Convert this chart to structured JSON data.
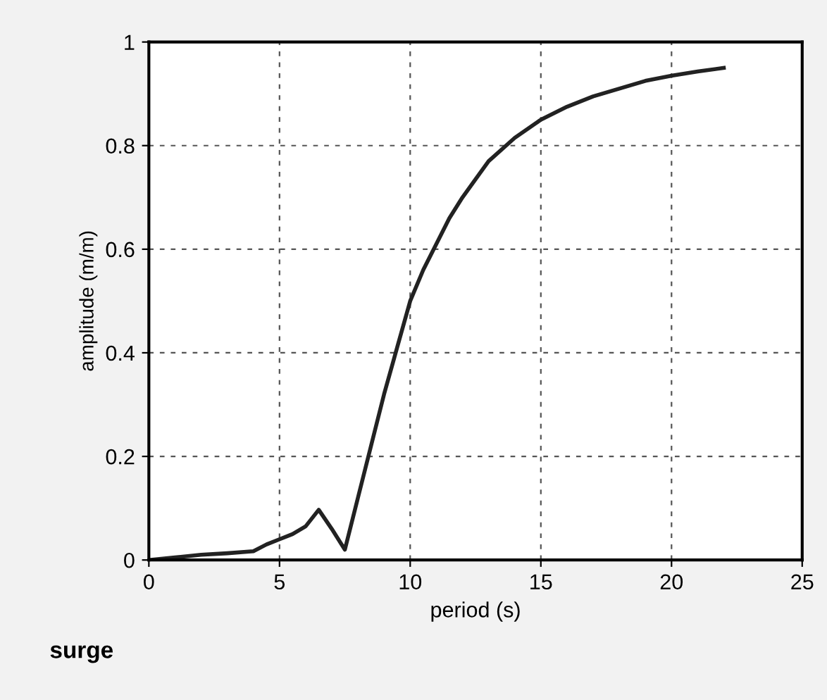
{
  "chart_data": {
    "type": "line",
    "xlabel": "period (s)",
    "ylabel": "amplitude (m/m)",
    "annotations": [
      "surge"
    ],
    "series": [
      {
        "color": "#222222",
        "x": [
          0,
          1,
          2,
          3,
          4,
          4.5,
          5,
          5.5,
          6,
          6.5,
          7,
          7.5,
          8,
          8.5,
          9,
          9.5,
          10,
          10.5,
          11,
          11.5,
          12,
          13,
          14,
          15,
          16,
          17,
          18,
          19,
          20,
          21,
          22
        ],
        "values": [
          0,
          0.005,
          0.01,
          0.013,
          0.017,
          0.03,
          0.04,
          0.05,
          0.065,
          0.097,
          0.06,
          0.02,
          0.12,
          0.22,
          0.32,
          0.41,
          0.5,
          0.56,
          0.61,
          0.66,
          0.7,
          0.77,
          0.815,
          0.85,
          0.875,
          0.895,
          0.91,
          0.925,
          0.935,
          0.943,
          0.95
        ]
      }
    ],
    "xlim": [
      0,
      25
    ],
    "ylim": [
      0,
      1
    ],
    "xticks": [
      0,
      5,
      10,
      15,
      20,
      25
    ],
    "yticks": [
      0,
      0.2,
      0.4,
      0.6,
      0.8,
      1
    ],
    "grid": true,
    "line_style": "solid",
    "marker": "none"
  }
}
